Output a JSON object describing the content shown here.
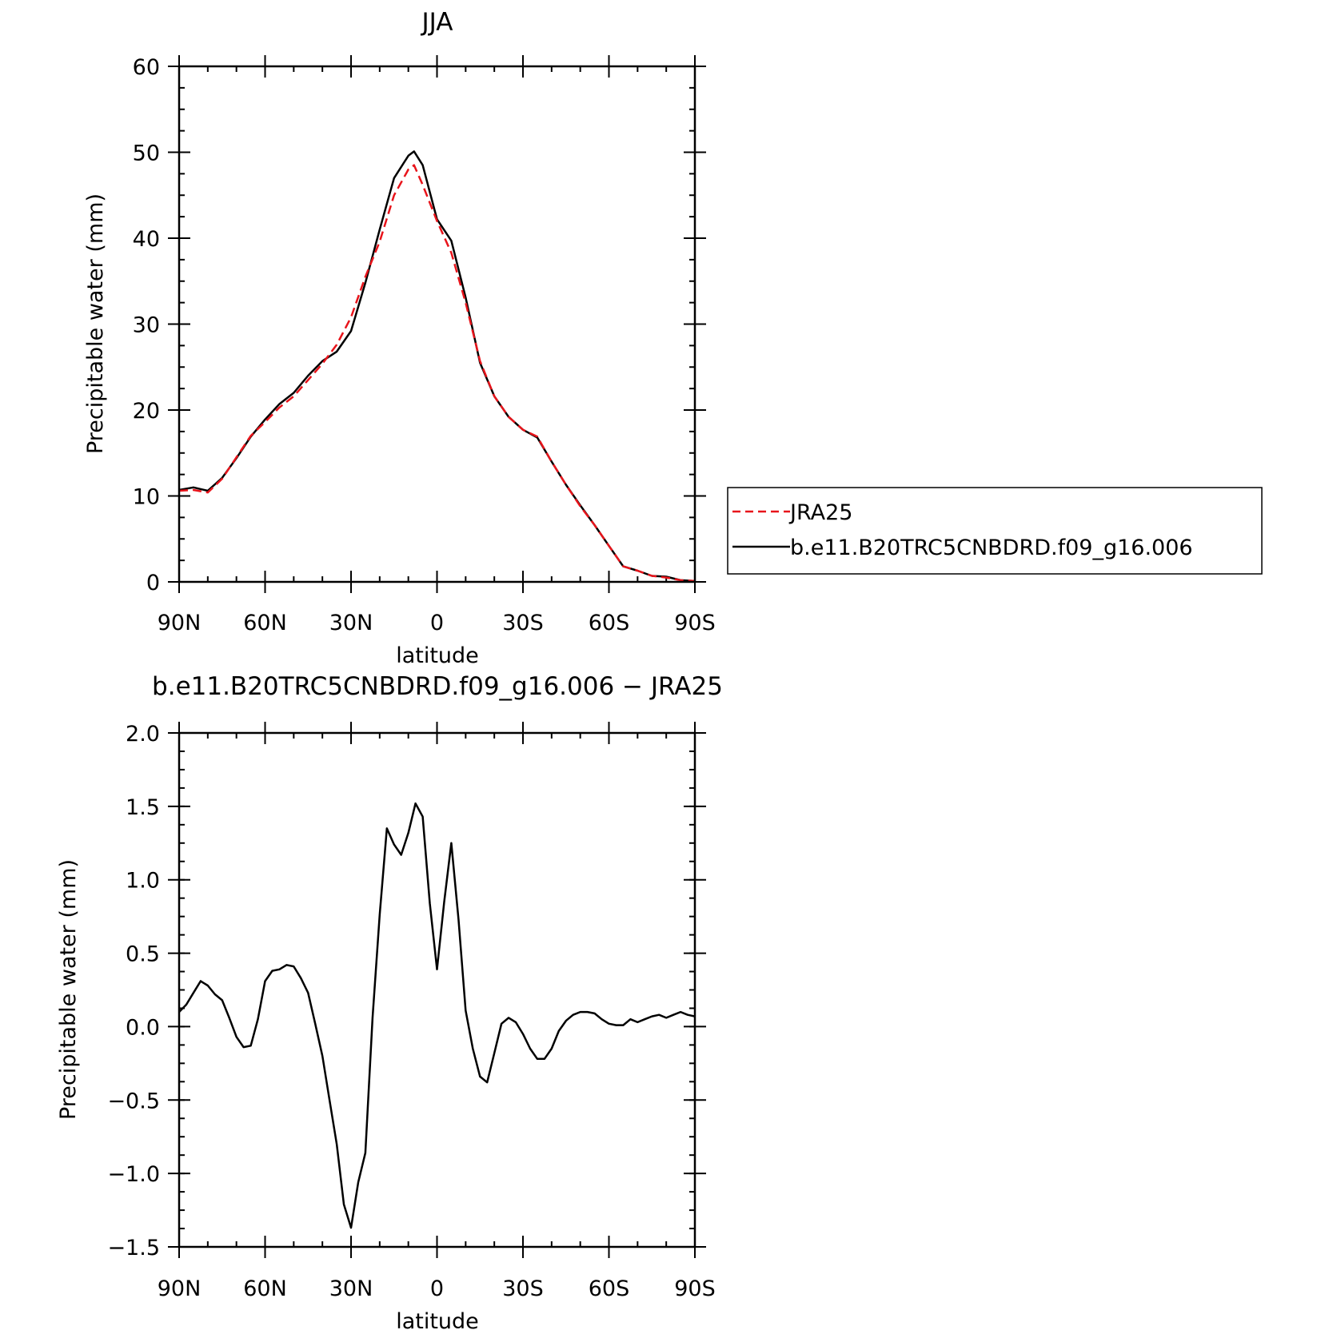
{
  "chart_data": [
    {
      "type": "line",
      "title": "JJA",
      "xlabel": "latitude",
      "ylabel": "Precipitable water (mm)",
      "xlim": [
        90,
        -90
      ],
      "ylim": [
        0,
        60
      ],
      "x_ticks": [
        90,
        60,
        30,
        0,
        -30,
        -60,
        -90
      ],
      "x_tick_labels": [
        "90N",
        "60N",
        "30N",
        "0",
        "30S",
        "60S",
        "90S"
      ],
      "y_ticks": [
        0,
        10,
        20,
        30,
        40,
        50,
        60
      ],
      "y_tick_labels": [
        "0",
        "10",
        "20",
        "30",
        "40",
        "50",
        "60"
      ],
      "legend_position": "right",
      "series": [
        {
          "name": "JRA25",
          "color": "#e8141b",
          "dash": "dashed",
          "x": [
            90,
            85,
            80,
            75,
            70,
            65,
            60,
            55,
            50,
            45,
            40,
            35,
            30,
            25,
            20,
            15,
            10,
            8,
            5,
            0,
            -5,
            -10,
            -15,
            -20,
            -25,
            -30,
            -35,
            -40,
            -45,
            -50,
            -55,
            -60,
            -65,
            -70,
            -75,
            -80,
            -85,
            -90
          ],
          "values": [
            10.6,
            10.7,
            10.4,
            12.0,
            14.5,
            17.0,
            18.6,
            20.3,
            21.6,
            23.5,
            25.4,
            27.6,
            30.8,
            35.5,
            39.6,
            45.0,
            48.0,
            48.5,
            46.2,
            42.0,
            38.3,
            32.5,
            25.7,
            21.6,
            19.2,
            17.7,
            16.9,
            14.0,
            11.3,
            8.8,
            6.6,
            4.2,
            1.8,
            1.3,
            0.7,
            0.5,
            0.2,
            0.1
          ]
        },
        {
          "name": "b.e11.B20TRC5CNBDRD.f09_g16.006",
          "color": "#000000",
          "dash": "solid",
          "x": [
            90,
            85,
            80,
            75,
            70,
            65,
            60,
            55,
            50,
            45,
            40,
            35,
            30,
            25,
            20,
            15,
            10,
            8,
            5,
            0,
            -5,
            -10,
            -15,
            -20,
            -25,
            -30,
            -35,
            -40,
            -45,
            -50,
            -55,
            -60,
            -65,
            -70,
            -75,
            -80,
            -85,
            -90
          ],
          "values": [
            10.7,
            11.0,
            10.6,
            12.1,
            14.4,
            16.9,
            18.9,
            20.7,
            22.0,
            24.0,
            25.7,
            26.8,
            29.2,
            34.8,
            41.0,
            47.0,
            49.6,
            50.1,
            48.5,
            42.2,
            39.7,
            33.1,
            25.5,
            21.6,
            19.2,
            17.7,
            16.8,
            14.0,
            11.3,
            8.9,
            6.6,
            4.2,
            1.8,
            1.3,
            0.7,
            0.6,
            0.2,
            0.1
          ]
        }
      ]
    },
    {
      "type": "line",
      "title": "b.e11.B20TRC5CNBDRD.f09_g16.006 − JRA25",
      "xlabel": "latitude",
      "ylabel": "Precipitable water (mm)",
      "xlim": [
        90,
        -90
      ],
      "ylim": [
        -1.5,
        2.0
      ],
      "x_ticks": [
        90,
        60,
        30,
        0,
        -30,
        -60,
        -90
      ],
      "x_tick_labels": [
        "90N",
        "60N",
        "30N",
        "0",
        "30S",
        "60S",
        "90S"
      ],
      "y_ticks": [
        -1.5,
        -1.0,
        -0.5,
        0.0,
        0.5,
        1.0,
        1.5,
        2.0
      ],
      "y_tick_labels": [
        "−1.5",
        "−1.0",
        "−0.5",
        "0.0",
        "0.5",
        "1.0",
        "1.5",
        "2.0"
      ],
      "series": [
        {
          "name": "",
          "color": "#000000",
          "dash": "solid",
          "x": [
            90,
            87.5,
            85,
            82.5,
            80,
            77.5,
            75,
            72.5,
            70,
            67.5,
            65,
            62.5,
            60,
            57.5,
            55,
            52.5,
            50,
            47.5,
            45,
            42.5,
            40,
            37.5,
            35,
            32.5,
            30,
            27.5,
            25,
            22.5,
            20,
            17.5,
            15,
            12.5,
            10,
            7.5,
            5,
            2.5,
            0,
            -2.5,
            -5,
            -7.5,
            -10,
            -12.5,
            -15,
            -17.5,
            -20,
            -22.5,
            -25,
            -27.5,
            -30,
            -32.5,
            -35,
            -37.5,
            -40,
            -42.5,
            -45,
            -47.5,
            -50,
            -52.5,
            -55,
            -57.5,
            -60,
            -62.5,
            -65,
            -67.5,
            -70,
            -72.5,
            -75,
            -77.5,
            -80,
            -82.5,
            -85,
            -87.5,
            -90
          ],
          "values": [
            0.1,
            0.15,
            0.23,
            0.31,
            0.28,
            0.22,
            0.18,
            0.06,
            -0.07,
            -0.14,
            -0.13,
            0.05,
            0.31,
            0.38,
            0.39,
            0.42,
            0.41,
            0.33,
            0.23,
            0.02,
            -0.2,
            -0.5,
            -0.8,
            -1.21,
            -1.37,
            -1.06,
            -0.86,
            0.06,
            0.76,
            1.35,
            1.24,
            1.17,
            1.32,
            1.52,
            1.43,
            0.84,
            0.39,
            0.85,
            1.25,
            0.73,
            0.11,
            -0.15,
            -0.34,
            -0.38,
            -0.18,
            0.02,
            0.06,
            0.03,
            -0.05,
            -0.15,
            -0.22,
            -0.22,
            -0.15,
            -0.03,
            0.04,
            0.08,
            0.1,
            0.1,
            0.09,
            0.05,
            0.02,
            0.01,
            0.01,
            0.05,
            0.03,
            0.05,
            0.07,
            0.08,
            0.06,
            0.08,
            0.1,
            0.08,
            0.07
          ]
        }
      ]
    }
  ]
}
